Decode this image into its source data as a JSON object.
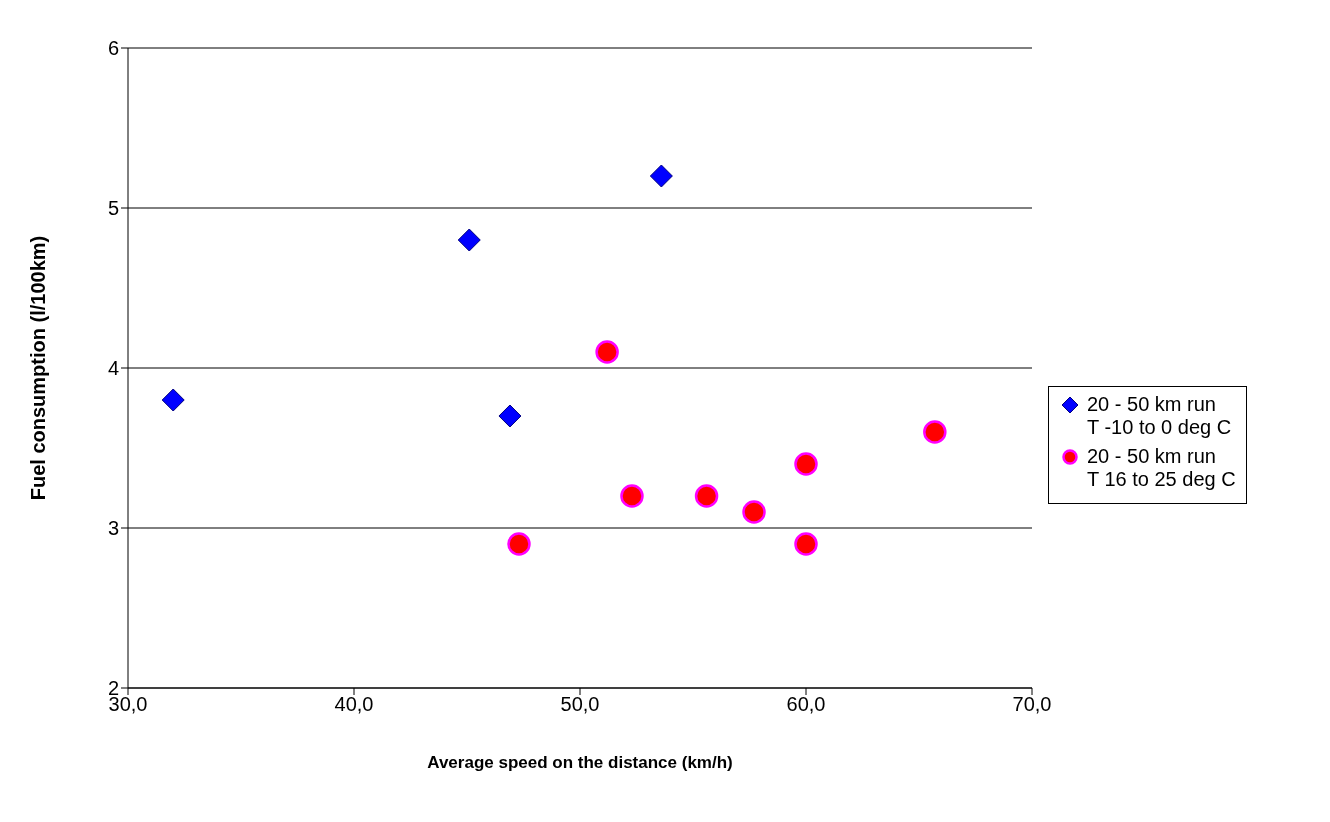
{
  "chart_data": {
    "type": "scatter",
    "xlabel": "Average speed on the distance (km/h)",
    "ylabel": "Fuel consumption (l/100km)",
    "xlim": [
      30,
      70
    ],
    "xticks": [
      {
        "value": 30,
        "label": "30,0"
      },
      {
        "value": 40,
        "label": "40,0"
      },
      {
        "value": 50,
        "label": "50,0"
      },
      {
        "value": 60,
        "label": "60,0"
      },
      {
        "value": 70,
        "label": "70,0"
      }
    ],
    "ylim": [
      2,
      6
    ],
    "yticks": [
      2,
      3,
      4,
      5,
      6
    ],
    "grid": "y",
    "legend": "right",
    "series": [
      {
        "name": "20 - 50 km run\nT -10 to 0 deg C",
        "color": "#0000ff",
        "marker": "diamond",
        "x": [
          32.0,
          45.1,
          46.9,
          53.6
        ],
        "values": [
          3.8,
          4.8,
          3.7,
          5.2
        ]
      },
      {
        "name": "20 - 50 km run\nT 16 to 25 deg C",
        "color": "#ff0000",
        "marker": "circle",
        "x": [
          51.2,
          47.3,
          52.3,
          55.6,
          57.7,
          60.0,
          60.0,
          65.7
        ],
        "values": [
          4.1,
          2.9,
          3.2,
          3.2,
          3.1,
          3.4,
          2.9,
          3.6
        ]
      }
    ]
  }
}
